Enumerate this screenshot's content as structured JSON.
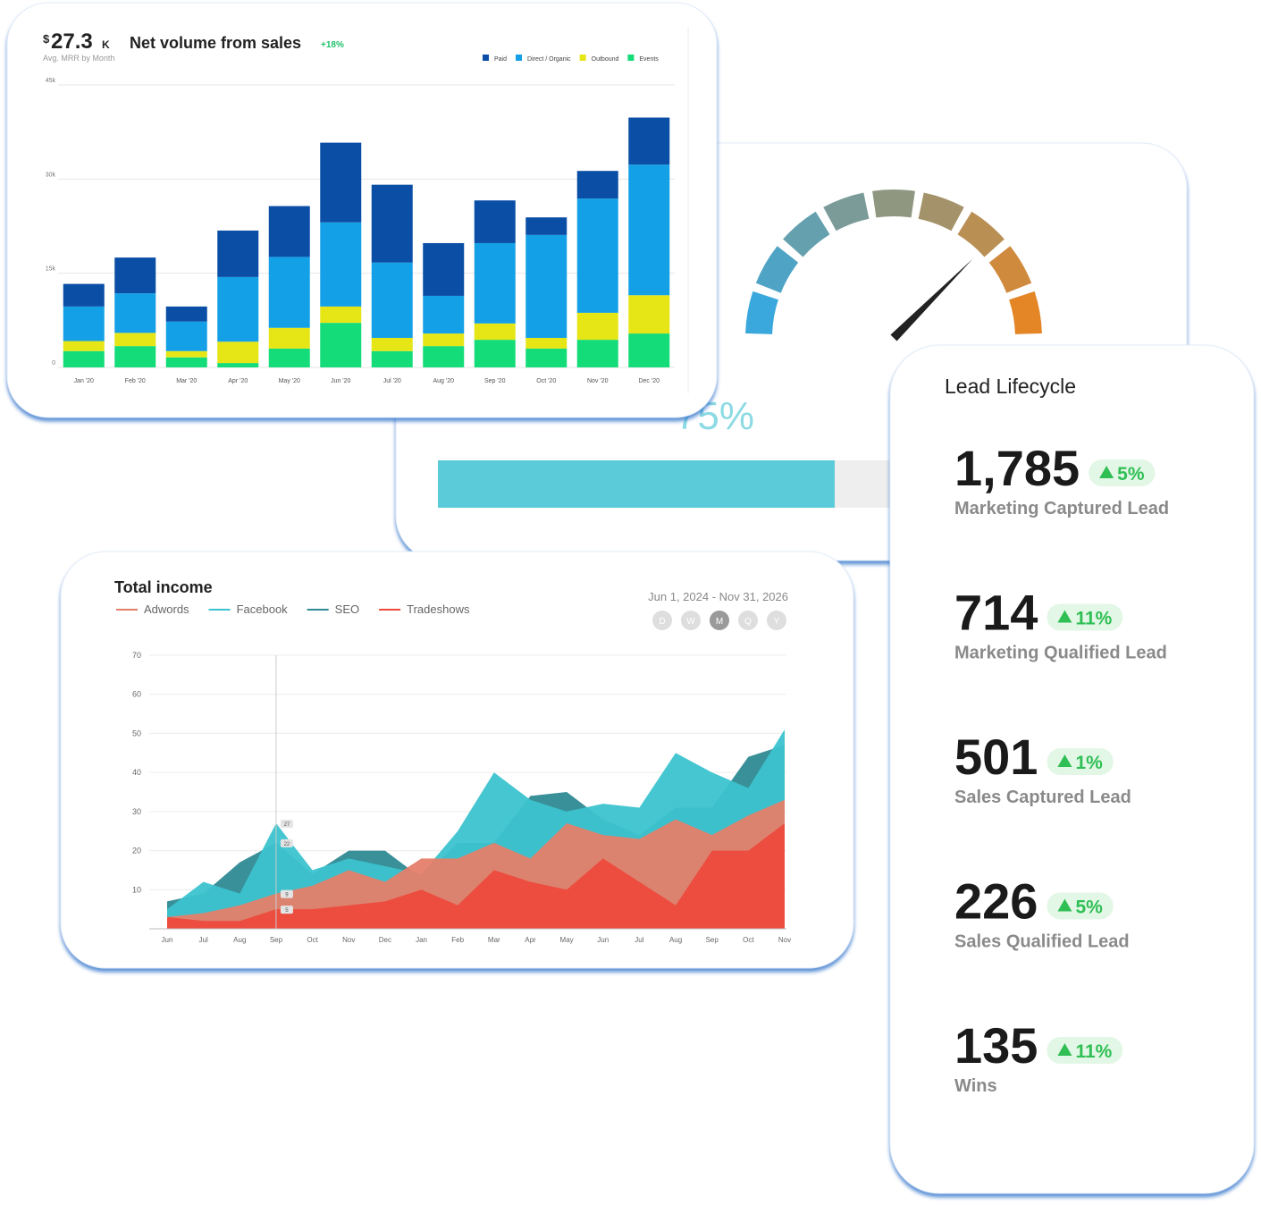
{
  "chart_data": [
    {
      "type": "bar",
      "stacked": true,
      "kpi_currency": "$",
      "kpi_value": "27.3",
      "kpi_unit": "K",
      "kpi_label": "Avg. MRR by Month",
      "title": "Net volume from sales",
      "change": "+18%",
      "categories": [
        "Jan '20",
        "Feb '20",
        "Mar '20",
        "Apr '20",
        "May '20",
        "Jun '20",
        "Jul '20",
        "Aug '20",
        "Sep '20",
        "Oct '20",
        "Nov '20",
        "Dec '20"
      ],
      "series": [
        {
          "name": "Paid",
          "color": "#0a4ea6",
          "values": [
            3600,
            5700,
            2400,
            7400,
            8100,
            12700,
            12400,
            8400,
            6800,
            2800,
            4400,
            7500
          ]
        },
        {
          "name": "Direct / Organic",
          "color": "#14a0e6",
          "values": [
            5500,
            6300,
            4700,
            10300,
            11300,
            13400,
            12000,
            6000,
            12800,
            16400,
            18200,
            20800
          ]
        },
        {
          "name": "Outbound",
          "color": "#e6e617",
          "values": [
            1600,
            2100,
            1000,
            3400,
            3300,
            2600,
            2100,
            2000,
            2600,
            1700,
            4300,
            6100
          ]
        },
        {
          "name": "Events",
          "color": "#14dc78",
          "values": [
            2600,
            3400,
            1600,
            700,
            3000,
            7100,
            2600,
            3400,
            4400,
            3000,
            4400,
            5400
          ]
        }
      ],
      "ylim": [
        0,
        45000
      ],
      "yticks": [
        0,
        {
          "value": 15000,
          "label": "15k"
        },
        {
          "value": 30000,
          "label": "30k"
        },
        {
          "value": 45000,
          "label": "45k"
        }
      ],
      "grid": true
    },
    {
      "type": "gauge",
      "values": [
        75
      ],
      "value_labels": [
        "75%"
      ],
      "ylim": [
        0,
        100
      ],
      "color": "#5ccbd9"
    },
    {
      "type": "area",
      "title": "Total income",
      "date_range": "Jun 1, 2024 - Nov 31, 2026",
      "periods": [
        "D",
        "W",
        "M",
        "Q",
        "Y"
      ],
      "selected_period": "M",
      "categories": [
        "Jun",
        "Jul",
        "Aug",
        "Sep",
        "Oct",
        "Nov",
        "Dec",
        "Jan",
        "Feb",
        "Mar",
        "Apr",
        "May",
        "Jun",
        "Jul",
        "Aug",
        "Sep",
        "Oct",
        "Nov"
      ],
      "series": [
        {
          "name": "Adwords",
          "color": "#e5806a",
          "values": [
            3,
            4,
            6,
            9,
            11,
            15,
            12,
            18,
            18,
            22,
            18,
            27,
            24,
            23,
            28,
            24,
            29,
            33
          ]
        },
        {
          "name": "Facebook",
          "color": "#3cc3cf",
          "values": [
            5,
            12,
            9,
            27,
            15,
            18,
            16,
            14,
            25,
            40,
            33,
            30,
            32,
            31,
            45,
            40,
            36,
            51
          ]
        },
        {
          "name": "SEO",
          "color": "#2e8a93",
          "values": [
            7,
            9,
            17,
            22,
            14,
            20,
            20,
            13,
            22,
            22,
            34,
            35,
            28,
            24,
            31,
            31,
            44,
            47
          ]
        },
        {
          "name": "Tradeshows",
          "color": "#ec4a3c",
          "values": [
            3,
            2,
            2,
            5,
            5,
            6,
            7,
            10,
            6,
            15,
            12,
            10,
            18,
            12,
            6,
            20,
            20,
            27
          ]
        }
      ],
      "ylim": [
        0,
        70
      ],
      "yticks": [
        10,
        20,
        30,
        40,
        50,
        60,
        70
      ],
      "grid": true
    }
  ],
  "lead_lifecycle": {
    "title": "Lead Lifecycle",
    "items": [
      {
        "value": "1,785",
        "change": "5%",
        "label": "Marketing Captured Lead"
      },
      {
        "value": "714",
        "change": "11%",
        "label": "Marketing Qualified Lead"
      },
      {
        "value": "501",
        "change": "1%",
        "label": "Sales Captured Lead"
      },
      {
        "value": "226",
        "change": "5%",
        "label": "Sales Qualified Lead"
      },
      {
        "value": "135",
        "change": "11%",
        "label": "Wins"
      }
    ]
  }
}
